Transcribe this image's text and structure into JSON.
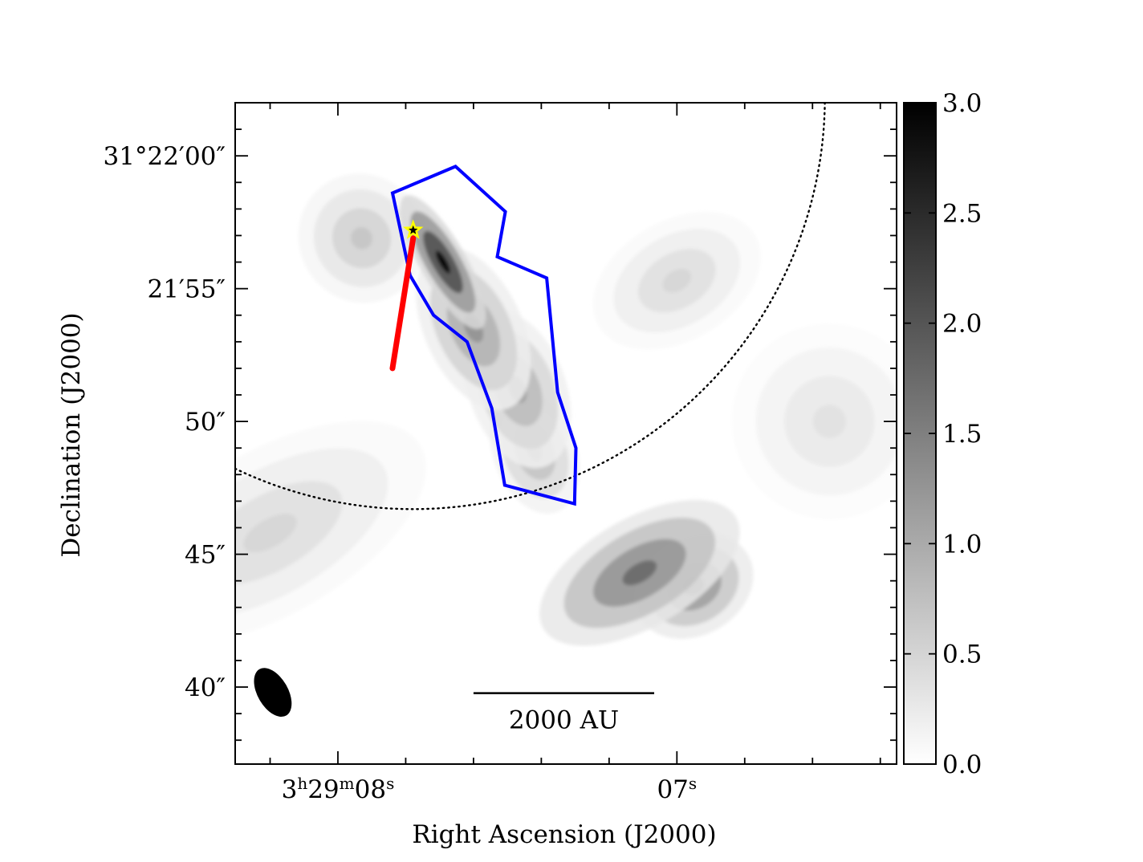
{
  "chart_data": {
    "type": "heatmap",
    "colormap": "greys",
    "xlabel": "Right Ascension (J2000)",
    "ylabel": "Declination (J2000)",
    "ra_ticks": [
      {
        "ra_s": 8.0,
        "major": "3",
        "sup1": "h",
        "mid": "29",
        "sup2": "m",
        "minor": "08",
        "sup3": "s"
      },
      {
        "ra_s": 7.0,
        "major": "",
        "sup1": "",
        "mid": "",
        "sup2": "",
        "minor": "07",
        "sup3": "s"
      }
    ],
    "dec_ticks": [
      {
        "offset_arcsec": 60,
        "label": "31°22′00″"
      },
      {
        "offset_arcsec": 55,
        "label": "21′55″"
      },
      {
        "offset_arcsec": 50,
        "label": "50″"
      },
      {
        "offset_arcsec": 45,
        "label": "45″"
      },
      {
        "offset_arcsec": 40,
        "label": "40″"
      }
    ],
    "ra_range_s": [
      8.303,
      6.352
    ],
    "dec_range_arcsec": [
      37.1,
      62.0
    ],
    "grid": false,
    "colorbar": {
      "range": [
        0.0,
        3.0
      ],
      "ticks": [
        "0.0",
        "0.5",
        "1.0",
        "1.5",
        "2.0",
        "2.5",
        "3.0"
      ],
      "tick_values": [
        0.0,
        0.5,
        1.0,
        1.5,
        2.0,
        2.5,
        3.0
      ]
    },
    "emission_blobs": [
      {
        "ra_s": 7.69,
        "dec_arcsec": 56.0,
        "sigma_ra_s": 0.033,
        "sigma_dec": 1.4,
        "angle_deg": -30,
        "peak": 3.0
      },
      {
        "ra_s": 7.6,
        "dec_arcsec": 53.5,
        "sigma_ra_s": 0.07,
        "sigma_dec": 1.6,
        "angle_deg": -25,
        "peak": 1.3
      },
      {
        "ra_s": 7.47,
        "dec_arcsec": 51.2,
        "sigma_ra_s": 0.07,
        "sigma_dec": 1.5,
        "angle_deg": -20,
        "peak": 1.15
      },
      {
        "ra_s": 7.42,
        "dec_arcsec": 48.9,
        "sigma_ra_s": 0.06,
        "sigma_dec": 1.2,
        "angle_deg": -20,
        "peak": 1.0
      },
      {
        "ra_s": 7.11,
        "dec_arcsec": 44.3,
        "sigma_ra_s": 0.16,
        "sigma_dec": 1.0,
        "angle_deg": -30,
        "peak": 1.8
      },
      {
        "ra_s": 6.95,
        "dec_arcsec": 43.8,
        "sigma_ra_s": 0.09,
        "sigma_dec": 0.9,
        "angle_deg": -30,
        "peak": 1.6
      },
      {
        "ra_s": 8.2,
        "dec_arcsec": 45.8,
        "sigma_ra_s": 0.25,
        "sigma_dec": 1.5,
        "angle_deg": -30,
        "peak": 0.5
      },
      {
        "ra_s": 7.93,
        "dec_arcsec": 56.9,
        "sigma_ra_s": 0.09,
        "sigma_dec": 1.2,
        "angle_deg": -30,
        "peak": 0.7
      },
      {
        "ra_s": 7.0,
        "dec_arcsec": 55.3,
        "sigma_ra_s": 0.13,
        "sigma_dec": 1.1,
        "angle_deg": -30,
        "peak": 0.5
      },
      {
        "ra_s": 6.55,
        "dec_arcsec": 50.0,
        "sigma_ra_s": 0.14,
        "sigma_dec": 1.8,
        "angle_deg": -30,
        "peak": 0.35
      }
    ],
    "polygon": {
      "color": "#0000ff",
      "points": [
        [
          7.839,
          58.6
        ],
        [
          7.653,
          59.6
        ],
        [
          7.506,
          57.9
        ],
        [
          7.53,
          56.2
        ],
        [
          7.384,
          55.4
        ],
        [
          7.352,
          51.1
        ],
        [
          7.298,
          49.0
        ],
        [
          7.302,
          46.9
        ],
        [
          7.508,
          47.6
        ],
        [
          7.546,
          50.5
        ],
        [
          7.619,
          53.0
        ],
        [
          7.718,
          54.0
        ],
        [
          7.787,
          55.5
        ]
      ]
    },
    "red_line": {
      "color": "#ff0000",
      "from": [
        7.778,
        56.9
      ],
      "to": [
        7.839,
        52.0
      ]
    },
    "star": {
      "ra_s": 7.778,
      "dec_arcsec": 57.2,
      "color": "#ffff00"
    },
    "primary_beam_circle": {
      "ra_s": 7.778,
      "dec_arcsec": 62.2,
      "radius_arcsec": 15.5
    },
    "scale_bar": {
      "label": "2000 AU",
      "ra_from_s": 7.6,
      "ra_to_s": 7.067,
      "dec_arcsec": 39.8
    },
    "beam": {
      "ra_s": 8.192,
      "dec_arcsec": 39.8,
      "major_arcsec": 1.3,
      "minor_arcsec": 0.85,
      "angle_deg": -30
    }
  }
}
